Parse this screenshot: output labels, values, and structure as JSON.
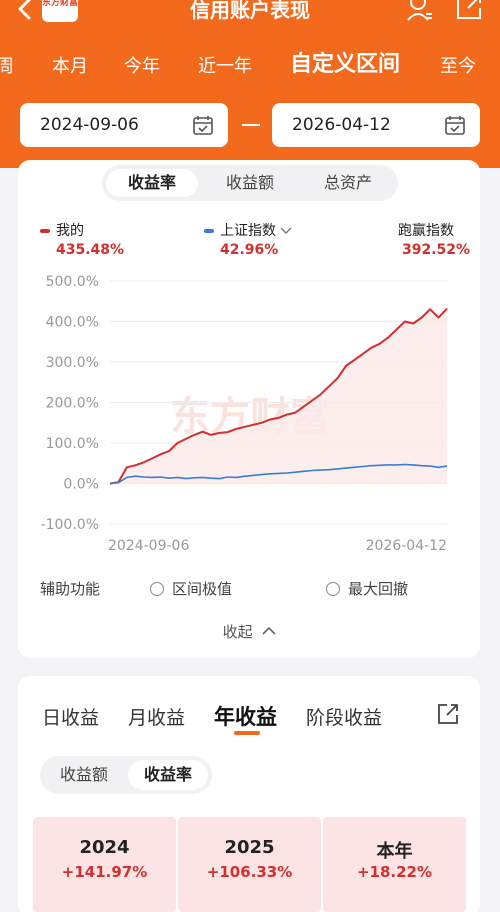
{
  "header": {
    "title": "信用账户表现",
    "logo_text": "东方财富",
    "tabs": [
      "周",
      "本月",
      "今年",
      "近一年",
      "自定义区间",
      "至今"
    ],
    "active_tab_index": 4,
    "start_date": "2024-09-06",
    "end_date": "2026-04-12",
    "accent_color": "#f36a1c"
  },
  "metric_tabs": [
    "收益率",
    "收益额",
    "总资产"
  ],
  "legend": {
    "mine_label": "我的",
    "mine_value": "435.48%",
    "index_label": "上证指数",
    "index_value": "42.96%",
    "beat_label": "跑赢指数",
    "beat_value": "392.52%"
  },
  "chart_data": {
    "type": "line",
    "y_ticks": [
      "500.0%",
      "400.0%",
      "300.0%",
      "200.0%",
      "100.0%",
      "0.0%",
      "-100.0%"
    ],
    "ylim": [
      -100,
      500
    ],
    "x_start_label": "2024-09-06",
    "x_end_label": "2026-04-12",
    "watermark": "东方财富",
    "series": [
      {
        "name": "我的",
        "color": "#d22f2f",
        "values": [
          0,
          3,
          40,
          45,
          52,
          62,
          72,
          80,
          100,
          110,
          120,
          128,
          120,
          125,
          127,
          135,
          140,
          145,
          150,
          158,
          162,
          170,
          175,
          190,
          205,
          220,
          240,
          260,
          290,
          305,
          320,
          335,
          345,
          360,
          380,
          400,
          395,
          410,
          430,
          410,
          432
        ]
      },
      {
        "name": "上证指数",
        "color": "#3c7ad8",
        "values": [
          0,
          2,
          15,
          18,
          16,
          15,
          16,
          13,
          15,
          12,
          14,
          15,
          13,
          12,
          16,
          15,
          18,
          20,
          22,
          24,
          25,
          26,
          28,
          30,
          32,
          33,
          34,
          36,
          38,
          40,
          42,
          44,
          45,
          46,
          46,
          47,
          46,
          44,
          43,
          40,
          43
        ]
      }
    ]
  },
  "aux": {
    "label": "辅助功能",
    "option_range": "区间极值",
    "option_drawdown": "最大回撤",
    "collapse": "收起"
  },
  "earnings_tabs": [
    "日收益",
    "月收益",
    "年收益",
    "阶段收益"
  ],
  "earnings_active_index": 2,
  "earnings_seg": [
    "收益额",
    "收益率"
  ],
  "years": [
    {
      "label": "2024",
      "value": "+141.97%"
    },
    {
      "label": "2025",
      "value": "+106.33%"
    },
    {
      "label": "本年",
      "value": "+18.22%"
    }
  ]
}
